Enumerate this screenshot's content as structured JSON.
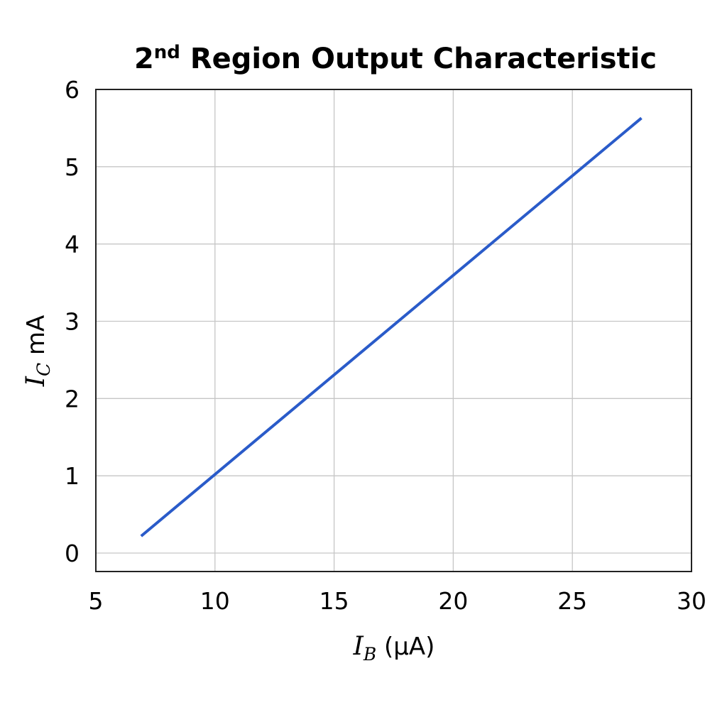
{
  "chart_data": {
    "type": "line",
    "title": {
      "prefix": "2",
      "superscript": "nd",
      "rest": " Region Output Characteristic"
    },
    "xlabel": {
      "symbol": "I",
      "subscript": "B",
      "units": " (µA)"
    },
    "ylabel": {
      "symbol": "I",
      "subscript": "C",
      "units": " mA"
    },
    "xlim": [
      5,
      30
    ],
    "ylim": [
      0,
      6
    ],
    "x_ticks": [
      5,
      10,
      15,
      20,
      25,
      30
    ],
    "y_ticks": [
      0,
      1,
      2,
      3,
      4,
      5,
      6
    ],
    "grid": true,
    "series": [
      {
        "color": "#2a5bc9",
        "x": [
          6.9,
          27.9
        ],
        "y": [
          0.22,
          5.63
        ]
      }
    ]
  }
}
